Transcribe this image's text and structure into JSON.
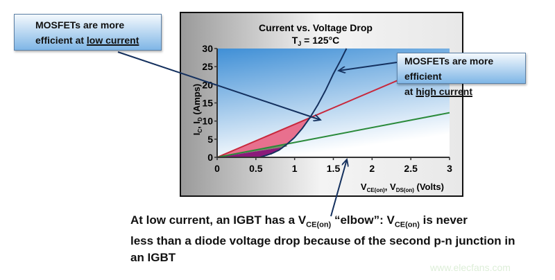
{
  "chart_data": {
    "type": "line",
    "title": "Current vs. Voltage Drop",
    "subtitle": {
      "main": "T",
      "sub": "J",
      "rest": " = 125°C"
    },
    "xlabel": {
      "parts": [
        "V",
        "CE(on)",
        ", V",
        "DS(on)",
        " (Volts)"
      ]
    },
    "ylabel": {
      "parts": [
        "I",
        "C",
        ", I",
        "D",
        " (Amps)"
      ]
    },
    "xlim": [
      0,
      3
    ],
    "ylim": [
      0,
      30
    ],
    "xticks": [
      "0",
      "0.5",
      "1",
      "1.5",
      "2",
      "2.5",
      "3"
    ],
    "yticks": [
      "0",
      "5",
      "10",
      "15",
      "20",
      "25",
      "30"
    ],
    "grid": false,
    "series": [
      {
        "color": "#c8283c",
        "x": [
          0,
          3
        ],
        "y": [
          0,
          27.3
        ]
      },
      {
        "color": "#2a8a3a",
        "x": [
          0,
          3
        ],
        "y": [
          0,
          12.3
        ]
      },
      {
        "color": "#14305e",
        "x": [
          0.55,
          0.7,
          0.8,
          0.9,
          1.0,
          1.1,
          1.2,
          1.3,
          1.4,
          1.5,
          1.6,
          1.67
        ],
        "y": [
          0,
          1,
          2,
          3.6,
          5.5,
          8,
          11,
          14.5,
          18.5,
          23,
          27,
          30
        ]
      }
    ],
    "fills": {
      "mosfet_advantage": "#e8708e",
      "igbt_region": "#8a1a7a",
      "band": "#7a8a6a"
    },
    "plot_background": [
      "#3f8fd6",
      "#ffffff"
    ]
  },
  "callouts": {
    "left": {
      "line1": "MOSFETs are more",
      "line2_pre": "efficient at ",
      "line2_u": "low current"
    },
    "right": {
      "line1": "MOSFETs are more efficient",
      "line2_pre": "at ",
      "line2_u": "high current"
    }
  },
  "note": {
    "p1": "At low current, an IGBT has a V",
    "s1": "CE(on)",
    "p2": " “elbow”: V",
    "s2": "CE(on)",
    "p3": " is never",
    "line2": "less than a diode voltage drop because of the second p-n junction in",
    "line3": "an IGBT"
  },
  "watermark": "www.elecfans.com"
}
